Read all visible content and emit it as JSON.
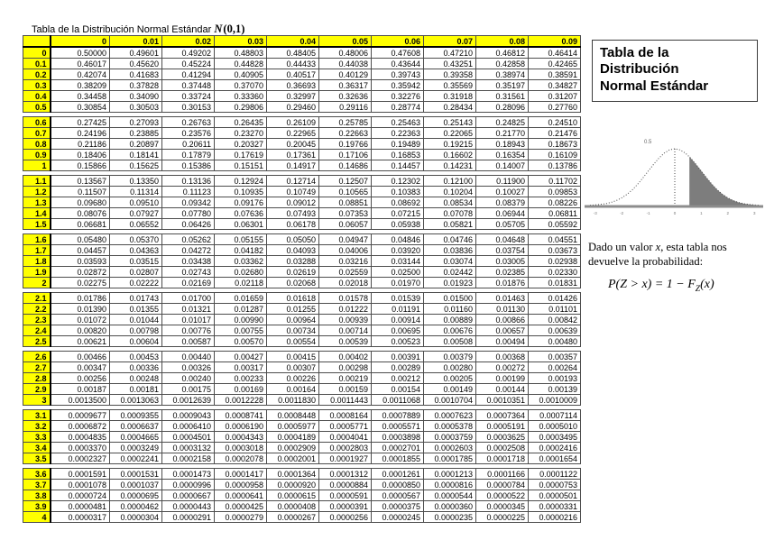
{
  "colors": {
    "header_yellow": "#ffff00",
    "grid": "#4d4d4d",
    "tail_shade": "#7d7d7d"
  },
  "page": {
    "title_text": "Tabla de la Distribución Normal Estándar",
    "title_math_n": "N",
    "title_math_args": "(0,1)"
  },
  "table": {
    "corner": "",
    "col_headers": [
      "0",
      "0.01",
      "0.02",
      "0.03",
      "0.04",
      "0.05",
      "0.06",
      "0.07",
      "0.08",
      "0.09"
    ],
    "groups": [
      [
        {
          "z": "0",
          "values": [
            "0.50000",
            "0.49601",
            "0.49202",
            "0.48803",
            "0.48405",
            "0.48006",
            "0.47608",
            "0.47210",
            "0.46812",
            "0.46414"
          ]
        },
        {
          "z": "0.1",
          "values": [
            "0.46017",
            "0.45620",
            "0.45224",
            "0.44828",
            "0.44433",
            "0.44038",
            "0.43644",
            "0.43251",
            "0.42858",
            "0.42465"
          ]
        },
        {
          "z": "0.2",
          "values": [
            "0.42074",
            "0.41683",
            "0.41294",
            "0.40905",
            "0.40517",
            "0.40129",
            "0.39743",
            "0.39358",
            "0.38974",
            "0.38591"
          ]
        },
        {
          "z": "0.3",
          "values": [
            "0.38209",
            "0.37828",
            "0.37448",
            "0.37070",
            "0.36693",
            "0.36317",
            "0.35942",
            "0.35569",
            "0.35197",
            "0.34827"
          ]
        },
        {
          "z": "0.4",
          "values": [
            "0.34458",
            "0.34090",
            "0.33724",
            "0.33360",
            "0.32997",
            "0.32636",
            "0.32276",
            "0.31918",
            "0.31561",
            "0.31207"
          ]
        },
        {
          "z": "0.5",
          "values": [
            "0.30854",
            "0.30503",
            "0.30153",
            "0.29806",
            "0.29460",
            "0.29116",
            "0.28774",
            "0.28434",
            "0.28096",
            "0.27760"
          ]
        }
      ],
      [
        {
          "z": "0.6",
          "values": [
            "0.27425",
            "0.27093",
            "0.26763",
            "0.26435",
            "0.26109",
            "0.25785",
            "0.25463",
            "0.25143",
            "0.24825",
            "0.24510"
          ]
        },
        {
          "z": "0.7",
          "values": [
            "0.24196",
            "0.23885",
            "0.23576",
            "0.23270",
            "0.22965",
            "0.22663",
            "0.22363",
            "0.22065",
            "0.21770",
            "0.21476"
          ]
        },
        {
          "z": "0.8",
          "values": [
            "0.21186",
            "0.20897",
            "0.20611",
            "0.20327",
            "0.20045",
            "0.19766",
            "0.19489",
            "0.19215",
            "0.18943",
            "0.18673"
          ]
        },
        {
          "z": "0.9",
          "values": [
            "0.18406",
            "0.18141",
            "0.17879",
            "0.17619",
            "0.17361",
            "0.17106",
            "0.16853",
            "0.16602",
            "0.16354",
            "0.16109"
          ]
        },
        {
          "z": "1",
          "values": [
            "0.15866",
            "0.15625",
            "0.15386",
            "0.15151",
            "0.14917",
            "0.14686",
            "0.14457",
            "0.14231",
            "0.14007",
            "0.13786"
          ]
        }
      ],
      [
        {
          "z": "1.1",
          "values": [
            "0.13567",
            "0.13350",
            "0.13136",
            "0.12924",
            "0.12714",
            "0.12507",
            "0.12302",
            "0.12100",
            "0.11900",
            "0.11702"
          ]
        },
        {
          "z": "1.2",
          "values": [
            "0.11507",
            "0.11314",
            "0.11123",
            "0.10935",
            "0.10749",
            "0.10565",
            "0.10383",
            "0.10204",
            "0.10027",
            "0.09853"
          ]
        },
        {
          "z": "1.3",
          "values": [
            "0.09680",
            "0.09510",
            "0.09342",
            "0.09176",
            "0.09012",
            "0.08851",
            "0.08692",
            "0.08534",
            "0.08379",
            "0.08226"
          ]
        },
        {
          "z": "1.4",
          "values": [
            "0.08076",
            "0.07927",
            "0.07780",
            "0.07636",
            "0.07493",
            "0.07353",
            "0.07215",
            "0.07078",
            "0.06944",
            "0.06811"
          ]
        },
        {
          "z": "1.5",
          "values": [
            "0.06681",
            "0.06552",
            "0.06426",
            "0.06301",
            "0.06178",
            "0.06057",
            "0.05938",
            "0.05821",
            "0.05705",
            "0.05592"
          ]
        }
      ],
      [
        {
          "z": "1.6",
          "values": [
            "0.05480",
            "0.05370",
            "0.05262",
            "0.05155",
            "0.05050",
            "0.04947",
            "0.04846",
            "0.04746",
            "0.04648",
            "0.04551"
          ]
        },
        {
          "z": "1.7",
          "values": [
            "0.04457",
            "0.04363",
            "0.04272",
            "0.04182",
            "0.04093",
            "0.04006",
            "0.03920",
            "0.03836",
            "0.03754",
            "0.03673"
          ]
        },
        {
          "z": "1.8",
          "values": [
            "0.03593",
            "0.03515",
            "0.03438",
            "0.03362",
            "0.03288",
            "0.03216",
            "0.03144",
            "0.03074",
            "0.03005",
            "0.02938"
          ]
        },
        {
          "z": "1.9",
          "values": [
            "0.02872",
            "0.02807",
            "0.02743",
            "0.02680",
            "0.02619",
            "0.02559",
            "0.02500",
            "0.02442",
            "0.02385",
            "0.02330"
          ]
        },
        {
          "z": "2",
          "values": [
            "0.02275",
            "0.02222",
            "0.02169",
            "0.02118",
            "0.02068",
            "0.02018",
            "0.01970",
            "0.01923",
            "0.01876",
            "0.01831"
          ]
        }
      ],
      [
        {
          "z": "2.1",
          "values": [
            "0.01786",
            "0.01743",
            "0.01700",
            "0.01659",
            "0.01618",
            "0.01578",
            "0.01539",
            "0.01500",
            "0.01463",
            "0.01426"
          ]
        },
        {
          "z": "2.2",
          "values": [
            "0.01390",
            "0.01355",
            "0.01321",
            "0.01287",
            "0.01255",
            "0.01222",
            "0.01191",
            "0.01160",
            "0.01130",
            "0.01101"
          ]
        },
        {
          "z": "2.3",
          "values": [
            "0.01072",
            "0.01044",
            "0.01017",
            "0.00990",
            "0.00964",
            "0.00939",
            "0.00914",
            "0.00889",
            "0.00866",
            "0.00842"
          ]
        },
        {
          "z": "2.4",
          "values": [
            "0.00820",
            "0.00798",
            "0.00776",
            "0.00755",
            "0.00734",
            "0.00714",
            "0.00695",
            "0.00676",
            "0.00657",
            "0.00639"
          ]
        },
        {
          "z": "2.5",
          "values": [
            "0.00621",
            "0.00604",
            "0.00587",
            "0.00570",
            "0.00554",
            "0.00539",
            "0.00523",
            "0.00508",
            "0.00494",
            "0.00480"
          ]
        }
      ],
      [
        {
          "z": "2.6",
          "values": [
            "0.00466",
            "0.00453",
            "0.00440",
            "0.00427",
            "0.00415",
            "0.00402",
            "0.00391",
            "0.00379",
            "0.00368",
            "0.00357"
          ]
        },
        {
          "z": "2.7",
          "values": [
            "0.00347",
            "0.00336",
            "0.00326",
            "0.00317",
            "0.00307",
            "0.00298",
            "0.00289",
            "0.00280",
            "0.00272",
            "0.00264"
          ]
        },
        {
          "z": "2.8",
          "values": [
            "0.00256",
            "0.00248",
            "0.00240",
            "0.00233",
            "0.00226",
            "0.00219",
            "0.00212",
            "0.00205",
            "0.00199",
            "0.00193"
          ]
        },
        {
          "z": "2.9",
          "values": [
            "0.00187",
            "0.00181",
            "0.00175",
            "0.00169",
            "0.00164",
            "0.00159",
            "0.00154",
            "0.00149",
            "0.00144",
            "0.00139"
          ]
        },
        {
          "z": "3",
          "values": [
            "0.0013500",
            "0.0013063",
            "0.0012639",
            "0.0012228",
            "0.0011830",
            "0.0011443",
            "0.0011068",
            "0.0010704",
            "0.0010351",
            "0.0010009"
          ]
        }
      ],
      [
        {
          "z": "3.1",
          "values": [
            "0.0009677",
            "0.0009355",
            "0.0009043",
            "0.0008741",
            "0.0008448",
            "0.0008164",
            "0.0007889",
            "0.0007623",
            "0.0007364",
            "0.0007114"
          ]
        },
        {
          "z": "3.2",
          "values": [
            "0.0006872",
            "0.0006637",
            "0.0006410",
            "0.0006190",
            "0.0005977",
            "0.0005771",
            "0.0005571",
            "0.0005378",
            "0.0005191",
            "0.0005010"
          ]
        },
        {
          "z": "3.3",
          "values": [
            "0.0004835",
            "0.0004665",
            "0.0004501",
            "0.0004343",
            "0.0004189",
            "0.0004041",
            "0.0003898",
            "0.0003759",
            "0.0003625",
            "0.0003495"
          ]
        },
        {
          "z": "3.4",
          "values": [
            "0.0003370",
            "0.0003249",
            "0.0003132",
            "0.0003018",
            "0.0002909",
            "0.0002803",
            "0.0002701",
            "0.0002603",
            "0.0002508",
            "0.0002416"
          ]
        },
        {
          "z": "3.5",
          "values": [
            "0.0002327",
            "0.0002241",
            "0.0002158",
            "0.0002078",
            "0.0002001",
            "0.0001927",
            "0.0001855",
            "0.0001785",
            "0.0001718",
            "0.0001654"
          ]
        }
      ],
      [
        {
          "z": "3.6",
          "values": [
            "0.0001591",
            "0.0001531",
            "0.0001473",
            "0.0001417",
            "0.0001364",
            "0.0001312",
            "0.0001261",
            "0.0001213",
            "0.0001166",
            "0.0001122"
          ]
        },
        {
          "z": "3.7",
          "values": [
            "0.0001078",
            "0.0001037",
            "0.0000996",
            "0.0000958",
            "0.0000920",
            "0.0000884",
            "0.0000850",
            "0.0000816",
            "0.0000784",
            "0.0000753"
          ]
        },
        {
          "z": "3.8",
          "values": [
            "0.0000724",
            "0.0000695",
            "0.0000667",
            "0.0000641",
            "0.0000615",
            "0.0000591",
            "0.0000567",
            "0.0000544",
            "0.0000522",
            "0.0000501"
          ]
        },
        {
          "z": "3.9",
          "values": [
            "0.0000481",
            "0.0000462",
            "0.0000443",
            "0.0000425",
            "0.0000408",
            "0.0000391",
            "0.0000375",
            "0.0000360",
            "0.0000345",
            "0.0000331"
          ]
        },
        {
          "z": "4",
          "values": [
            "0.0000317",
            "0.0000304",
            "0.0000291",
            "0.0000279",
            "0.0000267",
            "0.0000256",
            "0.0000245",
            "0.0000235",
            "0.0000225",
            "0.0000216"
          ]
        }
      ]
    ]
  },
  "side": {
    "box_title_lines": [
      "Tabla de la",
      "Distribución",
      "Normal Estándar"
    ],
    "plot": {
      "peak_label": "0.5",
      "x_ticks": [
        "-3",
        "-2",
        "-1",
        "0",
        "1",
        "2",
        "3"
      ]
    },
    "caption": {
      "before_x": "Dado un valor ",
      "x_var": "x",
      "after_x": ", esta tabla nos devuelve la probabilidad:"
    },
    "formula": {
      "lhs": "P(Z > x)",
      "mid": " = 1 − ",
      "f": "F",
      "sub": "Z",
      "arg": "(x)"
    }
  }
}
